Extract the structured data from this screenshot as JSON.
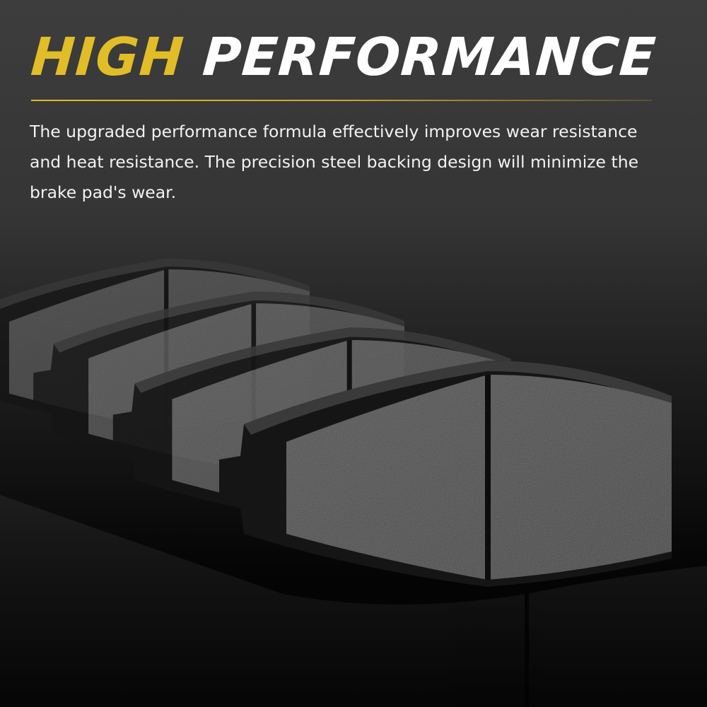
{
  "headline": {
    "word1": "HIGH",
    "word2": "PERFORMANCE"
  },
  "description": "The upgraded performance formula effectively improves wear resistance and heat resistance. The precision steel backing design will minimize the brake pad's wear.",
  "colors": {
    "accent": "#e1bd27",
    "text": "#ffffff",
    "background": "#3d3d3d"
  },
  "image": {
    "subject": "brake-pads"
  }
}
